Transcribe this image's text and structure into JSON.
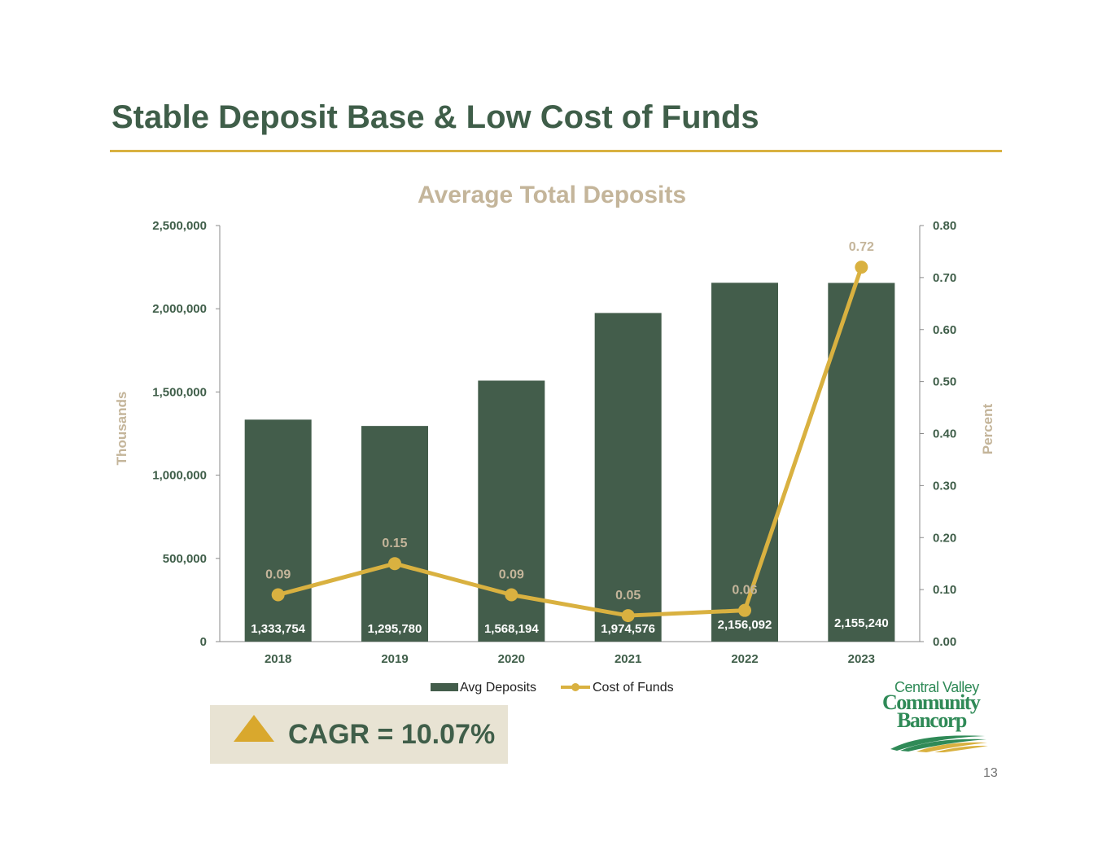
{
  "slide": {
    "title": "Stable Deposit Base & Low Cost of Funds",
    "page_number": "13",
    "cagr_label": "CAGR = 10.07%",
    "logo": {
      "line1": "Central Valley",
      "line2": "Community",
      "line3": "Bancorp"
    }
  },
  "colors": {
    "bars": "#435d4b",
    "line": "#d9b140",
    "title": "#3f5e49",
    "accent_label": "#c4b59a",
    "axis_text": "#3f5e49"
  },
  "chart_data": {
    "type": "bar",
    "title": "Average Total Deposits",
    "categories": [
      "2018",
      "2019",
      "2020",
      "2021",
      "2022",
      "2023"
    ],
    "series": [
      {
        "name": "Avg Deposits",
        "type": "bar",
        "axis": "left",
        "values": [
          1333754,
          1295780,
          1568194,
          1974576,
          2156092,
          2155240
        ],
        "labels": [
          "1,333,754",
          "1,295,780",
          "1,568,194",
          "1,974,576",
          "2,156,092",
          "2,155,240"
        ]
      },
      {
        "name": "Cost of Funds",
        "type": "line",
        "axis": "right",
        "values": [
          0.09,
          0.15,
          0.09,
          0.05,
          0.06,
          0.72
        ],
        "labels": [
          "0.09",
          "0.15",
          "0.09",
          "0.05",
          "0.06",
          "0.72"
        ]
      }
    ],
    "ylabel": "Thousands",
    "y2label": "Percent",
    "ylim": [
      0,
      2500000
    ],
    "y2lim": [
      0,
      0.8
    ],
    "yticks": [
      "0",
      "500,000",
      "1,000,000",
      "1,500,000",
      "2,000,000",
      "2,500,000"
    ],
    "y2ticks": [
      "0.00",
      "0.10",
      "0.20",
      "0.30",
      "0.40",
      "0.50",
      "0.60",
      "0.70",
      "0.80"
    ],
    "grid": false,
    "legend_position": "bottom"
  }
}
